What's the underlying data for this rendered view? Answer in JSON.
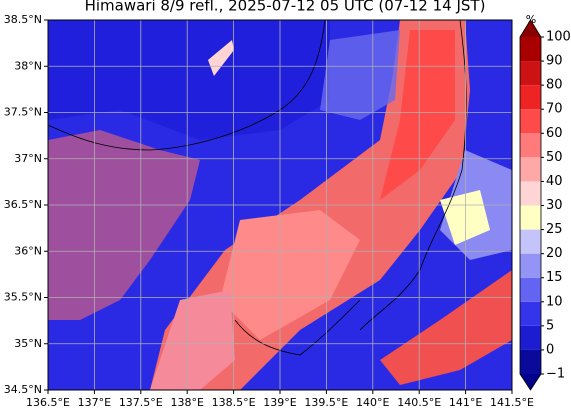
{
  "title": "Himawari 8/9 refl., 2025-07-12 05 UTC (07-12 14 JST)",
  "lonlim": [
    136.5,
    141.5
  ],
  "latlim": [
    34.5,
    38.5
  ],
  "lon_ticks": [
    {
      "value": 136.5,
      "label": "136.5°E"
    },
    {
      "value": 137,
      "label": "137°E"
    },
    {
      "value": 137.5,
      "label": "137.5°E"
    },
    {
      "value": 138,
      "label": "138°E"
    },
    {
      "value": 138.5,
      "label": "138.5°E"
    },
    {
      "value": 139,
      "label": "139°E"
    },
    {
      "value": 139.5,
      "label": "139.5°E"
    },
    {
      "value": 140,
      "label": "140°E"
    },
    {
      "value": 140.5,
      "label": "140.5°E"
    },
    {
      "value": 141,
      "label": "141°E"
    },
    {
      "value": 141.5,
      "label": "141.5°E"
    }
  ],
  "lat_ticks": [
    {
      "value": 34.5,
      "label": "34.5°N"
    },
    {
      "value": 35,
      "label": "35°N"
    },
    {
      "value": 35.5,
      "label": "35.5°N"
    },
    {
      "value": 36,
      "label": "36°N"
    },
    {
      "value": 36.5,
      "label": "36.5°N"
    },
    {
      "value": 37,
      "label": "37°N"
    },
    {
      "value": 37.5,
      "label": "37.5°N"
    },
    {
      "value": 38,
      "label": "38°N"
    },
    {
      "value": 38.5,
      "label": "38.5°N"
    }
  ],
  "grid": true,
  "colorbar": {
    "unit": "%",
    "ticks": [
      {
        "value": -1,
        "label": "−1"
      },
      0,
      5,
      10,
      15,
      20,
      25,
      30,
      40,
      50,
      60,
      70,
      80,
      90,
      100
    ],
    "colors": [
      "#0a0a9a",
      "#1c1cd0",
      "#3434ea",
      "#6464f2",
      "#9494f6",
      "#c4c4fa",
      "#ffffc4",
      "#ffd4d4",
      "#ffa8a8",
      "#ff7a7a",
      "#ff4a4a",
      "#ee2424",
      "#cc1212",
      "#a80000"
    ],
    "under_color": "#00008a",
    "over_color": "#8a0000"
  }
}
